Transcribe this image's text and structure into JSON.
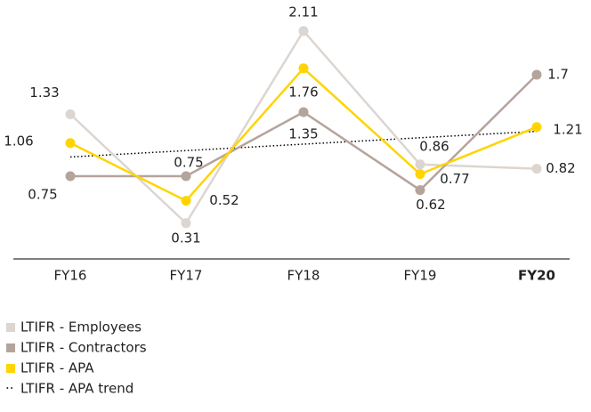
{
  "chart_data": {
    "type": "line",
    "categories": [
      "FY16",
      "FY17",
      "FY18",
      "FY19",
      "FY20"
    ],
    "ylim": [
      0,
      2.4
    ],
    "series": [
      {
        "name": "LTIFR - Employees",
        "color": "#dcd5d0",
        "values": [
          1.33,
          0.31,
          2.11,
          0.86,
          0.82
        ]
      },
      {
        "name": "LTIFR - Contractors",
        "color": "#b4a49c",
        "values": [
          0.75,
          0.75,
          1.35,
          0.62,
          1.7
        ]
      },
      {
        "name": "LTIFR - APA",
        "color": "#ffd400",
        "values": [
          1.06,
          0.52,
          1.76,
          0.77,
          1.21
        ]
      },
      {
        "name": "LTIFR - APA trend",
        "color": "#000000",
        "dashed": true,
        "values": [
          0.93,
          0.99,
          1.05,
          1.11,
          1.17
        ]
      }
    ]
  }
}
